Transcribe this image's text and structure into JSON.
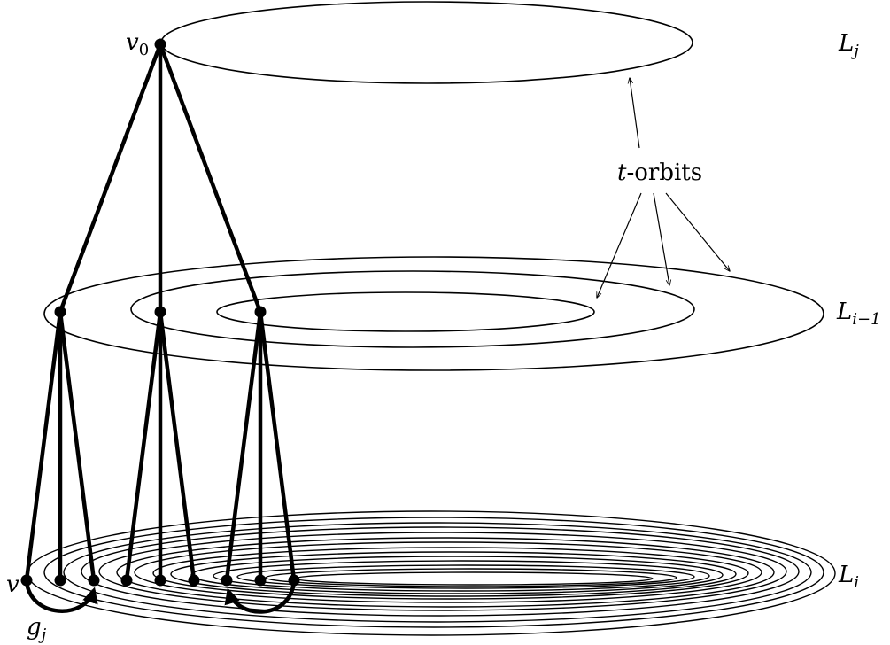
{
  "labels": {
    "v0": "v",
    "v0_sub": "0",
    "v": "v",
    "gj": "g",
    "gj_sub": "j",
    "t_orbits_var": "t",
    "t_orbits_rest": "-orbits"
  },
  "levels": [
    {
      "id": "Lj",
      "name": "L",
      "sub": "j"
    },
    {
      "id": "Li-1",
      "name": "L",
      "sub": "i−1"
    },
    {
      "id": "Li",
      "name": "L",
      "sub": "i"
    }
  ],
  "colors": {
    "stroke": "#000000",
    "background": "#ffffff"
  }
}
